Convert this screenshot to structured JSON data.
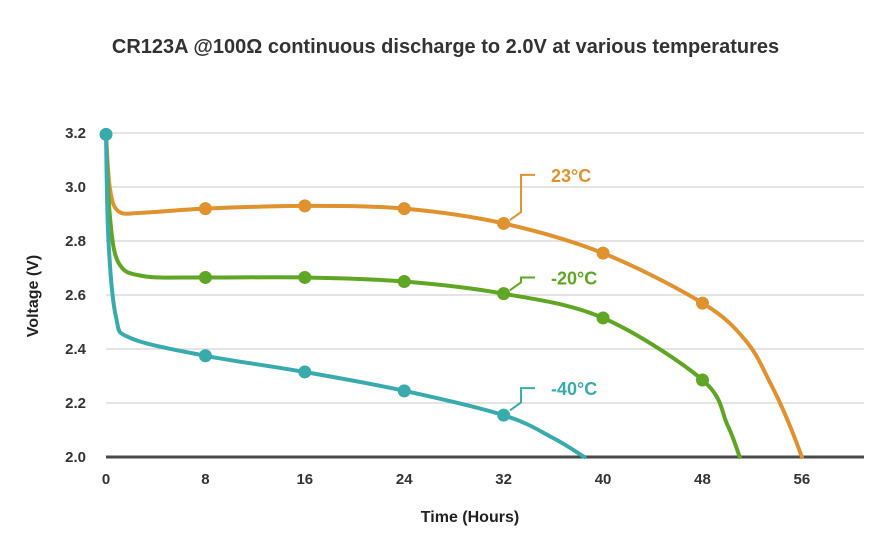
{
  "chart_data": {
    "type": "line",
    "title": "CR123A @100Ω continuous discharge to 2.0V at various temperatures",
    "xlabel": "Time (Hours)",
    "ylabel": "Voltage (V)",
    "xlim": [
      0,
      61
    ],
    "ylim": [
      2.0,
      3.2
    ],
    "x_ticks": [
      "0",
      "8",
      "16",
      "24",
      "32",
      "40",
      "48",
      "56"
    ],
    "y_ticks": [
      "2.0",
      "2.2",
      "2.4",
      "2.6",
      "2.8",
      "3.0",
      "3.2"
    ],
    "grid": true,
    "series": [
      {
        "name": "23°C",
        "color": "#e0922f",
        "markers_x": [
          8,
          16,
          24,
          32,
          40,
          48
        ],
        "markers_y": [
          2.92,
          2.93,
          2.92,
          2.865,
          2.755,
          2.57
        ],
        "curve": [
          [
            0,
            3.2
          ],
          [
            0.3,
            3.0
          ],
          [
            1,
            2.91
          ],
          [
            3,
            2.905
          ],
          [
            8,
            2.92
          ],
          [
            16,
            2.93
          ],
          [
            24,
            2.92
          ],
          [
            32,
            2.865
          ],
          [
            40,
            2.755
          ],
          [
            48,
            2.57
          ],
          [
            51.5,
            2.43
          ],
          [
            53.5,
            2.27
          ],
          [
            55,
            2.12
          ],
          [
            56,
            2.0
          ]
        ]
      },
      {
        "name": "-20°C",
        "color": "#5fa624",
        "markers_x": [
          8,
          16,
          24,
          32,
          40,
          48
        ],
        "markers_y": [
          2.665,
          2.665,
          2.65,
          2.605,
          2.515,
          2.285
        ],
        "curve": [
          [
            0,
            3.2
          ],
          [
            0.3,
            2.9
          ],
          [
            1,
            2.72
          ],
          [
            3,
            2.67
          ],
          [
            8,
            2.665
          ],
          [
            16,
            2.665
          ],
          [
            24,
            2.65
          ],
          [
            32,
            2.605
          ],
          [
            40,
            2.515
          ],
          [
            48,
            2.285
          ],
          [
            50,
            2.12
          ],
          [
            51,
            2.0
          ]
        ]
      },
      {
        "name": "-40°C",
        "color": "#3aabad",
        "markers_x": [
          0,
          8,
          16,
          24,
          32
        ],
        "markers_y": [
          3.195,
          2.375,
          2.315,
          2.245,
          2.155
        ],
        "curve": [
          [
            0,
            3.195
          ],
          [
            0.2,
            2.8
          ],
          [
            0.8,
            2.52
          ],
          [
            2,
            2.44
          ],
          [
            8,
            2.375
          ],
          [
            16,
            2.315
          ],
          [
            24,
            2.245
          ],
          [
            32,
            2.155
          ],
          [
            36,
            2.07
          ],
          [
            38.5,
            2.0
          ]
        ]
      }
    ]
  }
}
